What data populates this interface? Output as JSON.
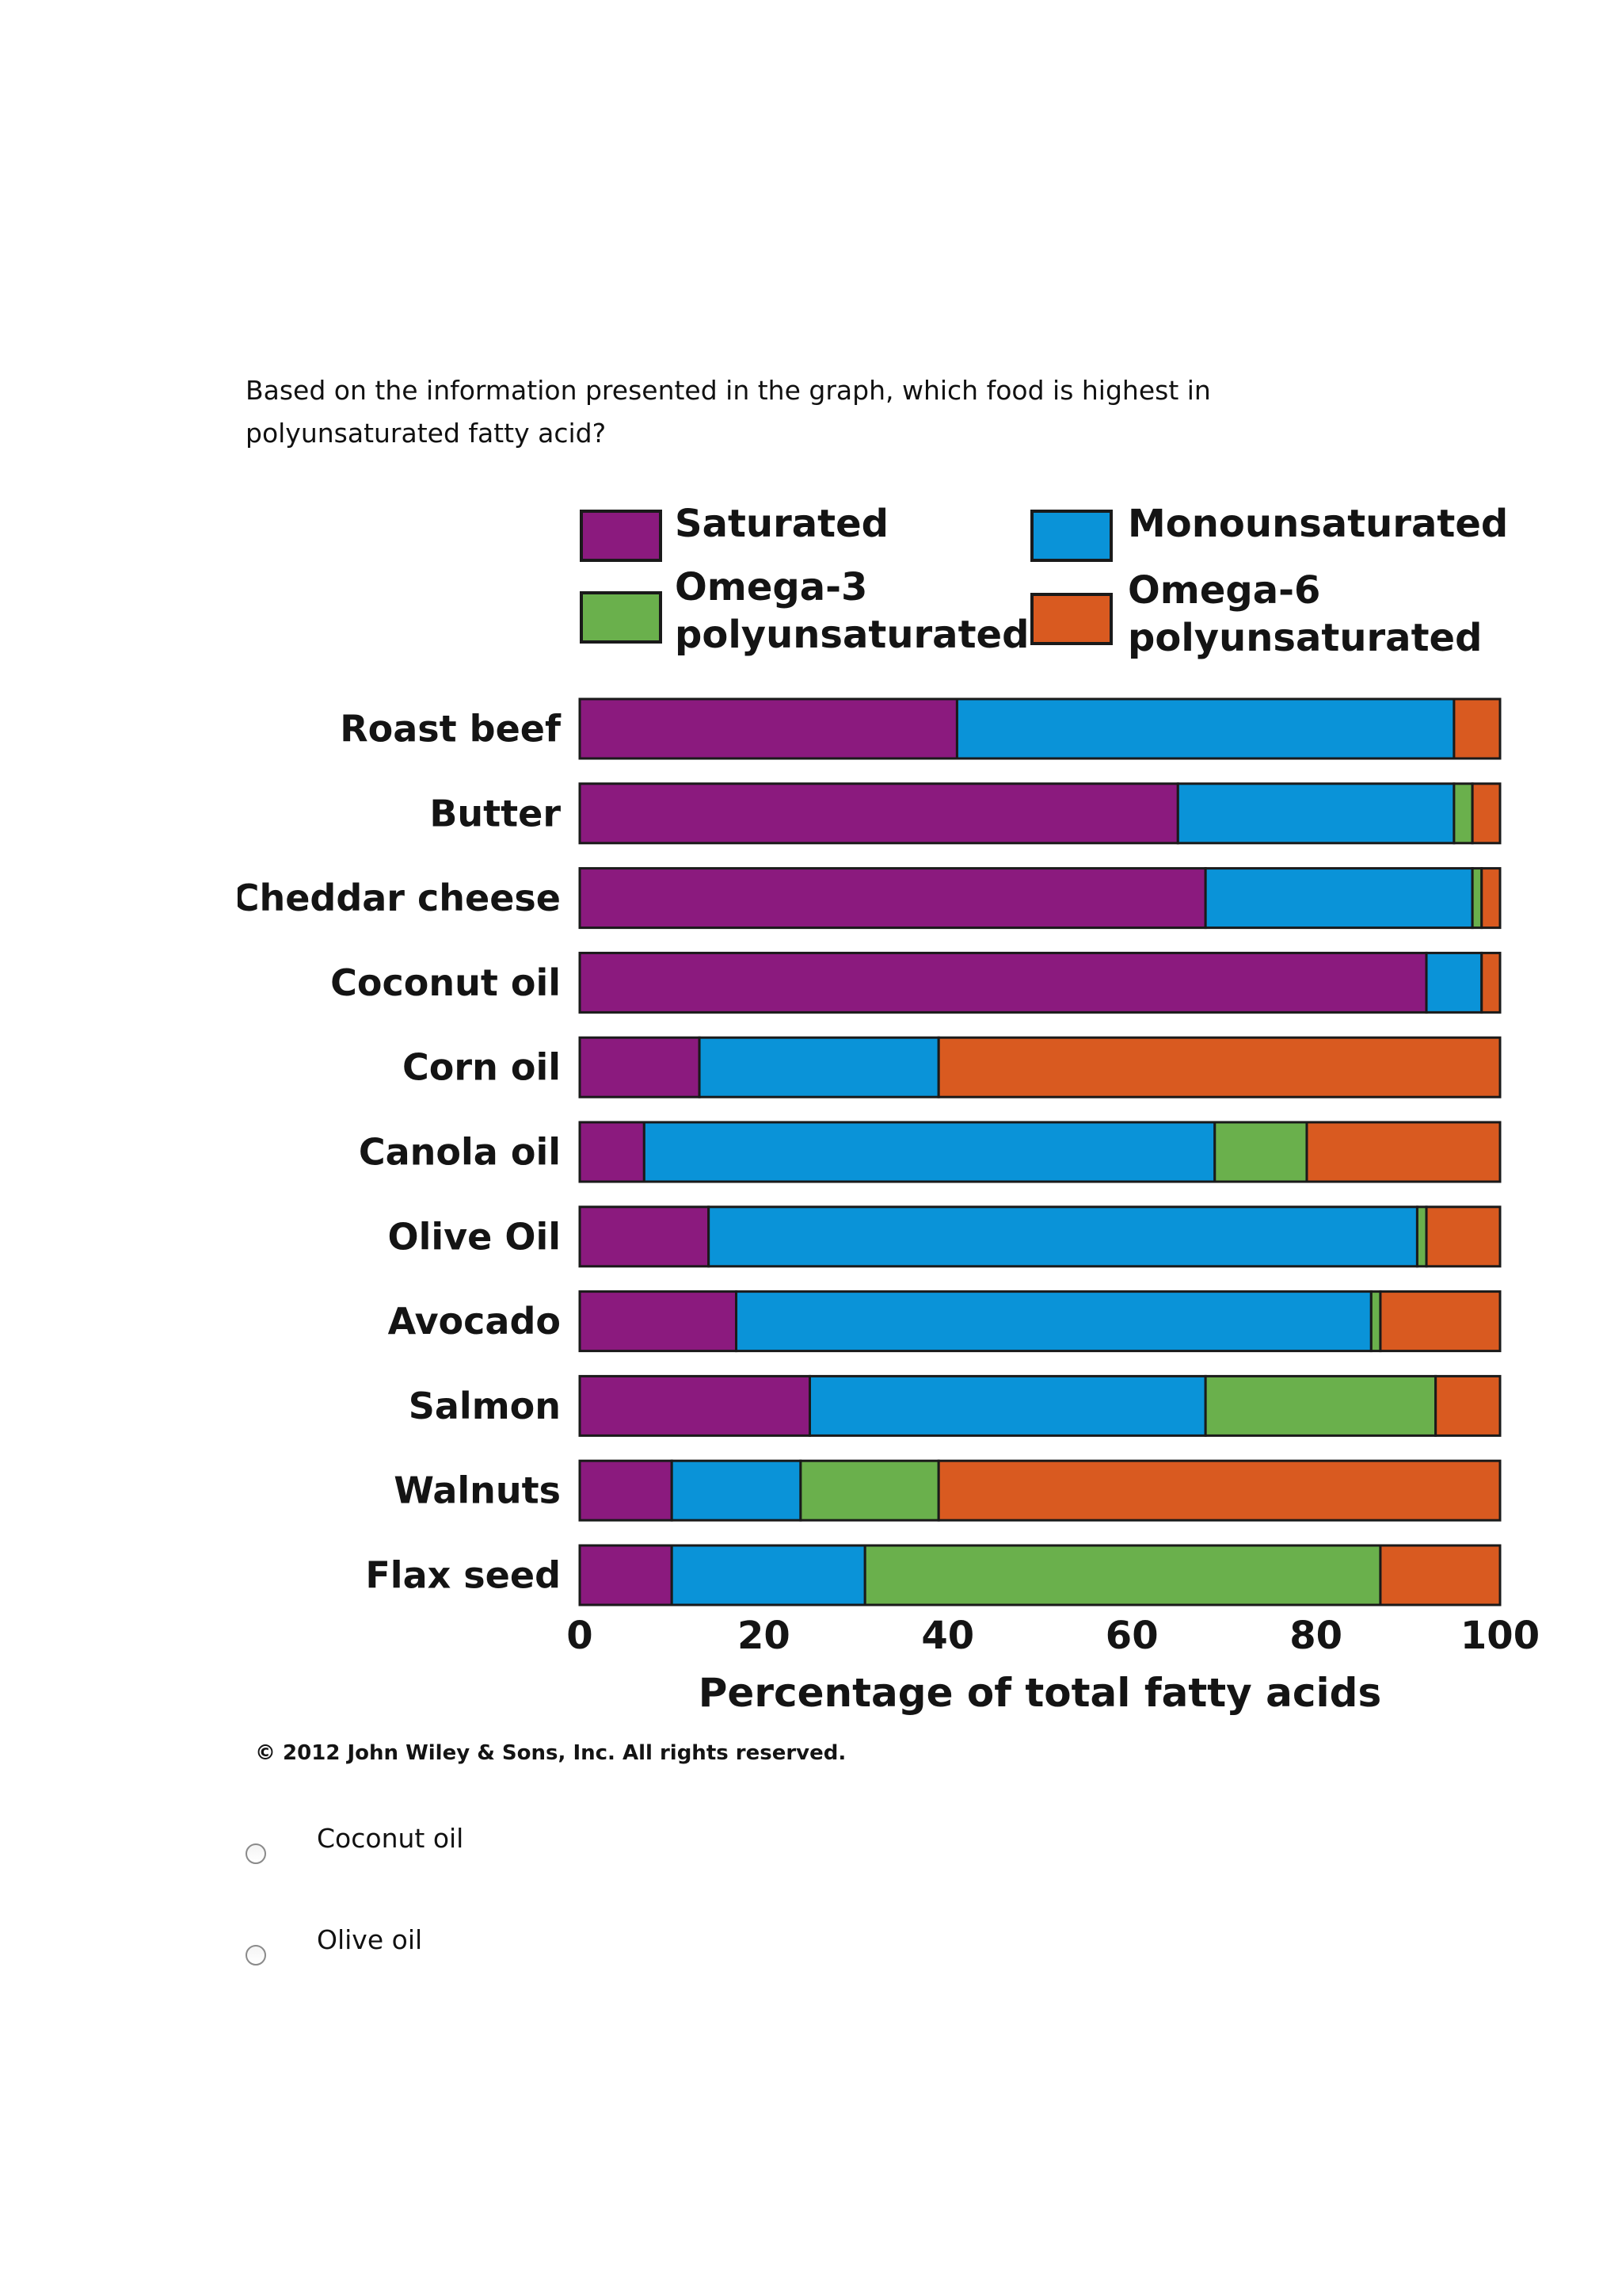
{
  "question": {
    "text": "Based on the information presented in the graph, which food is highest in polyunsaturated fatty acid?"
  },
  "chart_data": {
    "type": "bar",
    "orientation": "horizontal",
    "stacked": true,
    "title": "",
    "xlabel": "Percentage of total fatty acids",
    "ylabel": "",
    "xlim": [
      0,
      100
    ],
    "xticks": [
      "0",
      "20",
      "40",
      "60",
      "80",
      "100"
    ],
    "legend_position": "top",
    "categories": [
      "Roast beef",
      "Butter",
      "Cheddar cheese",
      "Coconut oil",
      "Corn oil",
      "Canola oil",
      "Olive Oil",
      "Avocado",
      "Salmon",
      "Walnuts",
      "Flax seed"
    ],
    "series": [
      {
        "name": "Saturated",
        "color": "#8b1a7e",
        "values": [
          41,
          65,
          68,
          92,
          13,
          7,
          14,
          17,
          25,
          10,
          10
        ]
      },
      {
        "name": "Monounsaturated",
        "color": "#0a93d8",
        "values": [
          54,
          30,
          29,
          6,
          26,
          62,
          77,
          69,
          43,
          14,
          21
        ]
      },
      {
        "name": "Omega-3 polyunsaturated",
        "color": "#6ab04c",
        "values": [
          0,
          2,
          1,
          0,
          0,
          10,
          1,
          1,
          25,
          15,
          56
        ]
      },
      {
        "name": "Omega-6 polyunsaturated",
        "color": "#d95a20",
        "values": [
          5,
          3,
          2,
          2,
          61,
          21,
          8,
          13,
          7,
          61,
          13
        ]
      }
    ],
    "credit": "© 2012 John Wiley & Sons, Inc. All rights reserved."
  },
  "answers": [
    {
      "label": "Coconut oil"
    },
    {
      "label": "Olive oil"
    }
  ]
}
